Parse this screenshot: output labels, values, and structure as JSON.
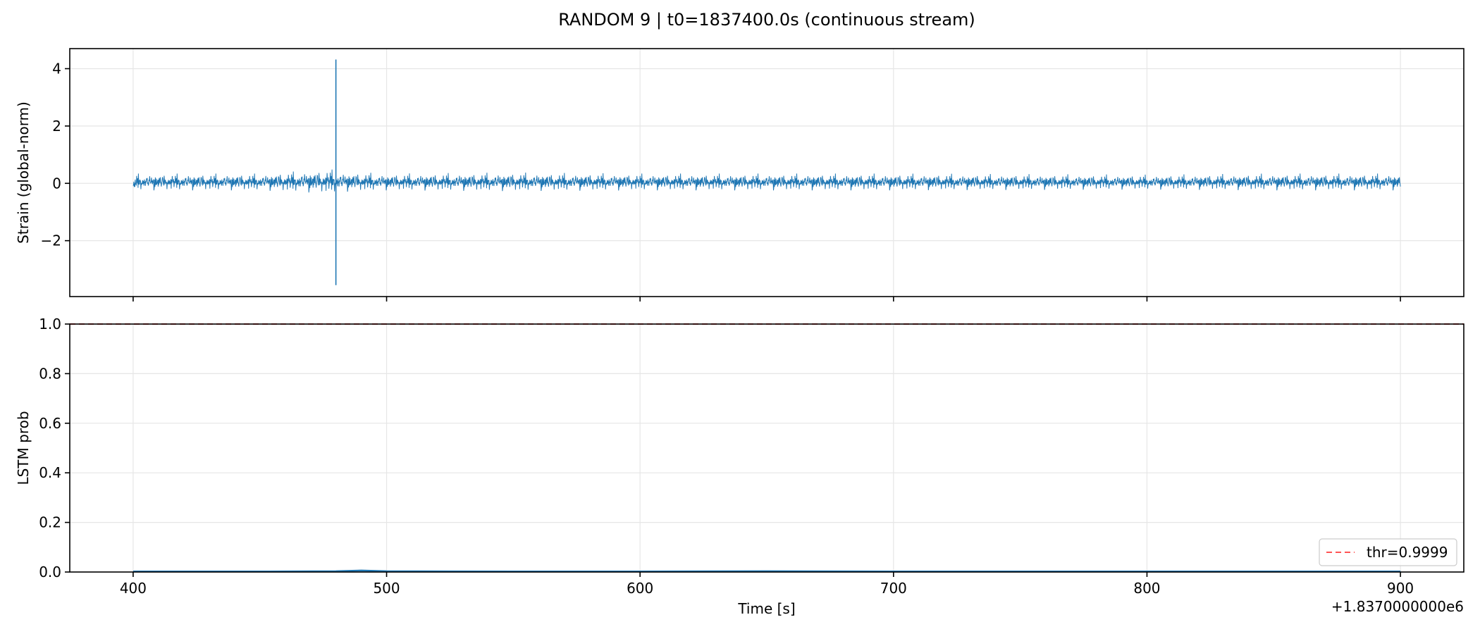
{
  "figure": {
    "title": "RANDOM 9 | t0=1837400.0s (continuous stream)"
  },
  "colors": {
    "strain_line": "#1f77b4",
    "prob_line": "#1f77b4",
    "threshold_line": "#ff5555",
    "grid": "#e6e6e6",
    "axes": "#000000"
  },
  "chart_data": [
    {
      "type": "line",
      "panel": "top",
      "xlabel": "",
      "ylabel": "Strain (global-norm)",
      "xlim": [
        375,
        925
      ],
      "ylim": [
        -3.95,
        4.7
      ],
      "x_ticks": [
        400,
        500,
        600,
        700,
        800,
        900
      ],
      "x_tick_labels": [],
      "y_ticks": [
        -2,
        0,
        2,
        4
      ],
      "y_tick_labels": [
        "−2",
        "0",
        "2",
        "4"
      ],
      "grid": true,
      "series": [
        {
          "x_range": [
            400,
            900
          ],
          "noise_envelope": [
            [
              400,
              0.45
            ],
            [
              450,
              0.45
            ],
            [
              478,
              0.65
            ],
            [
              482,
              0.55
            ],
            [
              500,
              0.45
            ],
            [
              550,
              0.5
            ],
            [
              600,
              0.45
            ],
            [
              700,
              0.45
            ],
            [
              800,
              0.4
            ],
            [
              850,
              0.45
            ],
            [
              900,
              0.45
            ]
          ],
          "events": [
            {
              "x": 480,
              "y_max": 4.32,
              "y_min": -3.55,
              "y_secondary": -2.2
            }
          ]
        }
      ]
    },
    {
      "type": "line",
      "panel": "bottom",
      "xlabel": "Time [s]",
      "ylabel": "LSTM prob",
      "xlim": [
        375,
        925
      ],
      "ylim": [
        0,
        1
      ],
      "x_ticks": [
        400,
        500,
        600,
        700,
        800,
        900
      ],
      "x_tick_labels": [
        "400",
        "500",
        "600",
        "700",
        "800",
        "900"
      ],
      "x_offset_text": "+1.8370000000e6",
      "y_ticks": [
        0,
        0.2,
        0.4,
        0.6,
        0.8,
        1.0
      ],
      "y_tick_labels": [
        "0.0",
        "0.2",
        "0.4",
        "0.6",
        "0.8",
        "1.0"
      ],
      "grid": true,
      "legend_placement": "lower-right",
      "series": [
        {
          "x": [
            400,
            450,
            480,
            490,
            500,
            550,
            600,
            650,
            700,
            750,
            800,
            850,
            900
          ],
          "values": [
            0.002,
            0.002,
            0.003,
            0.006,
            0.003,
            0.002,
            0.002,
            0.003,
            0.002,
            0.002,
            0.002,
            0.002,
            0.002
          ]
        }
      ],
      "hlines": [
        {
          "name": "thr=0.9999",
          "y": 0.9999,
          "style": "dashed"
        }
      ]
    }
  ]
}
